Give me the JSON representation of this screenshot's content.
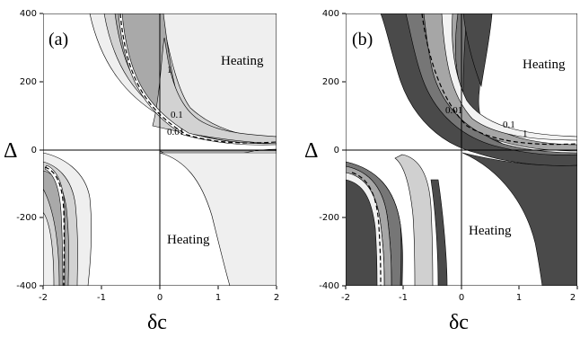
{
  "chart_data": [
    {
      "type": "contour",
      "panel_label": "(a)",
      "xlabel": "δc",
      "ylabel": "Δ",
      "xlim": [
        -2,
        2
      ],
      "ylim": [
        -400,
        400
      ],
      "x_ticks": [
        "-2",
        "-1",
        "0",
        "1",
        "2"
      ],
      "y_ticks": [
        "-400",
        "-200",
        "0",
        "200",
        "400"
      ],
      "region_labels": [
        "Heating",
        "Heating"
      ],
      "contour_labels": [
        "1",
        "0.1",
        "0.01"
      ],
      "fill_levels": [
        "#efefef",
        "#d2d2d2",
        "#a9a9a9",
        "#737373",
        "#ffffff"
      ]
    },
    {
      "type": "contour",
      "panel_label": "(b)",
      "xlabel": "δc",
      "ylabel": "Δ",
      "xlim": [
        -2,
        2
      ],
      "ylim": [
        -400,
        400
      ],
      "x_ticks": [
        "-2",
        "-1",
        "0",
        "1",
        "2"
      ],
      "y_ticks": [
        "-400",
        "-200",
        "0",
        "200",
        "400"
      ],
      "region_labels": [
        "Heating",
        "Heating"
      ],
      "contour_labels": [
        "0.01",
        "0.1",
        "1"
      ],
      "fill_levels": [
        "#4a4a4a",
        "#767676",
        "#a6a6a6",
        "#d0d0d0",
        "#f2f2f2",
        "#ffffff"
      ]
    }
  ]
}
